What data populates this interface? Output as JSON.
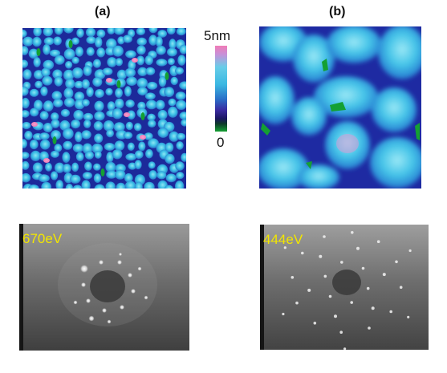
{
  "panels": {
    "a": {
      "label": "(a)"
    },
    "b": {
      "label": "(b)"
    }
  },
  "colorbar": {
    "max_label": "5nm",
    "min_label": "0"
  },
  "leed": {
    "a_energy": "670eV",
    "b_energy": "444eV"
  },
  "colors": {
    "afm_background": "#1c2a9a",
    "afm_grain": "#3cc0e6",
    "afm_peak": "#f07cb6",
    "afm_pit": "#14a033",
    "energy_text": "#f2e600"
  }
}
